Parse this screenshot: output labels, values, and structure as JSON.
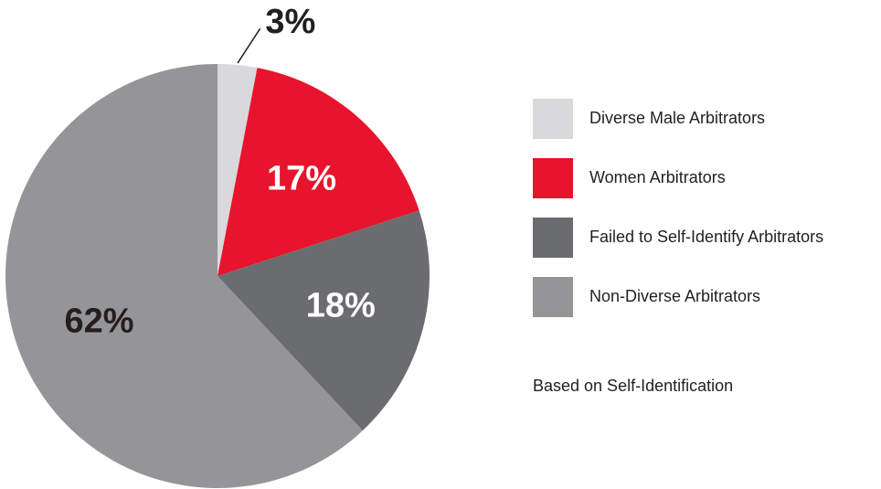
{
  "chart_data": {
    "type": "pie",
    "categories": [
      "Diverse Male Arbitrators",
      "Women Arbitrators",
      "Failed to Self-Identify Arbitrators",
      "Non-Diverse Arbitrators"
    ],
    "values": [
      3,
      17,
      18,
      62
    ],
    "value_labels": [
      "3%",
      "17%",
      "18%",
      "62%"
    ],
    "colors": [
      "#d9d9db",
      "#e8132c",
      "#6b6c6f",
      "#959597"
    ],
    "note": "Based on Self-Identification"
  }
}
